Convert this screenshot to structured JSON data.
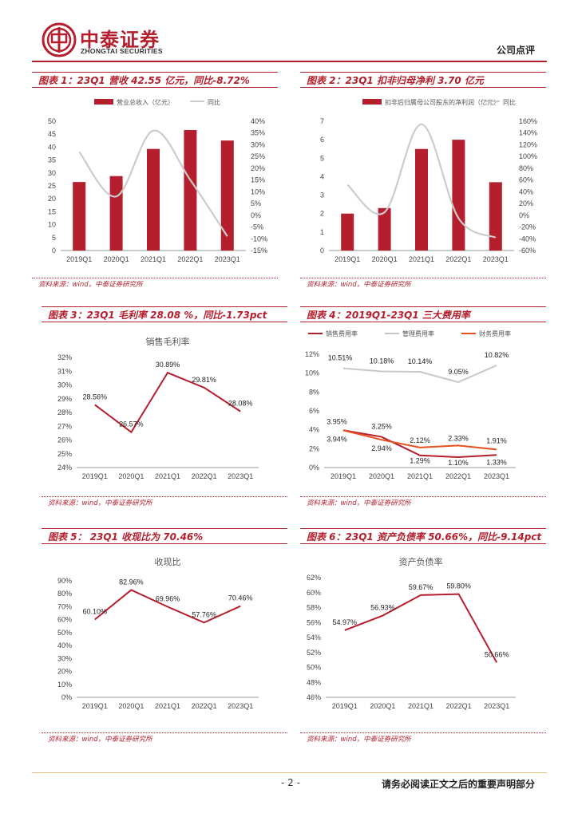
{
  "header": {
    "brand_cn": "中泰证券",
    "brand_en": "ZHONGTAI SECURITIES",
    "doc_type": "公司点评",
    "accent": "#b41e2d"
  },
  "panels": [
    {
      "title": "图表 1：23Q1 营收 42.55 亿元，同比-8.72%",
      "source": "资料来源：wind，中泰证券研究所",
      "chart_data": {
        "type": "bar+line",
        "categories": [
          "2019Q1",
          "2020Q1",
          "2021Q1",
          "2022Q1",
          "2023Q1"
        ],
        "series": [
          {
            "name": "营业总收入（亿元）",
            "kind": "bar",
            "axis": "left",
            "values": [
              26.5,
              28.8,
              39.3,
              46.6,
              42.55
            ]
          },
          {
            "name": "同比",
            "kind": "line",
            "axis": "right",
            "values": [
              27,
              8,
              36,
              15,
              -9
            ]
          }
        ],
        "left_axis": {
          "min": 0,
          "max": 50,
          "ticks": [
            "0",
            "5",
            "10",
            "15",
            "20",
            "25",
            "30",
            "35",
            "40",
            "45",
            "50"
          ]
        },
        "right_axis": {
          "min": -15,
          "max": 40,
          "ticks": [
            "-15%",
            "-10%",
            "-5%",
            "0%",
            "5%",
            "10%",
            "15%",
            "20%",
            "25%",
            "30%",
            "35%",
            "40%"
          ]
        },
        "legend": [
          "营业总收入（亿元）",
          "同比"
        ]
      }
    },
    {
      "title": "图表 2：23Q1 扣非归母净利 3.70 亿元",
      "source": "资料来源：wind，中泰证券研究所",
      "chart_data": {
        "type": "bar+line",
        "categories": [
          "2019Q1",
          "2020Q1",
          "2021Q1",
          "2022Q1",
          "2023Q1"
        ],
        "series": [
          {
            "name": "扣非后归属母公司股东的净利润（亿元）",
            "kind": "bar",
            "axis": "left",
            "values": [
              2.0,
              2.3,
              5.5,
              6.0,
              3.7
            ]
          },
          {
            "name": "同比",
            "kind": "line",
            "axis": "right",
            "values": [
              52,
              5,
              155,
              -5,
              -38
            ]
          }
        ],
        "left_axis": {
          "min": 0,
          "max": 7,
          "ticks": [
            "0",
            "1",
            "2",
            "3",
            "4",
            "5",
            "6",
            "7"
          ]
        },
        "right_axis": {
          "min": -60,
          "max": 160,
          "ticks": [
            "-60%",
            "-40%",
            "-20%",
            "0%",
            "20%",
            "40%",
            "60%",
            "80%",
            "100%",
            "120%",
            "140%",
            "160%"
          ]
        },
        "legend": [
          "扣非后归属母公司股东的净利润（亿元）",
          "同比"
        ]
      }
    },
    {
      "title": "图表 3：23Q1 毛利率 28.08 %，同比-1.73pct",
      "source": "资料来源：wind，中泰证券研究所",
      "chart_data": {
        "type": "line",
        "title": "销售毛利率",
        "categories": [
          "2019Q1",
          "2020Q1",
          "2021Q1",
          "2022Q1",
          "2023Q1"
        ],
        "series": [
          {
            "name": "销售毛利率",
            "values": [
              28.56,
              26.57,
              30.89,
              29.81,
              28.08
            ],
            "labels": [
              "28.56%",
              "26.57%",
              "30.89%",
              "29.81%",
              "28.08%"
            ]
          }
        ],
        "y_axis": {
          "min": 24,
          "max": 32,
          "ticks": [
            "24%",
            "25%",
            "26%",
            "27%",
            "28%",
            "29%",
            "30%",
            "31%",
            "32%"
          ]
        }
      }
    },
    {
      "title": "图表 4：2019Q1-23Q1 三大费用率",
      "source": "资料来源：wind，中泰证券研究所",
      "chart_data": {
        "type": "line",
        "categories": [
          "2019Q1",
          "2020Q1",
          "2021Q1",
          "2022Q1",
          "2023Q1"
        ],
        "series": [
          {
            "name": "销售费用率",
            "color": "#b41e2d",
            "values": [
              3.95,
              3.25,
              1.29,
              1.1,
              1.33
            ],
            "labels": [
              "3.95%",
              "3.25%",
              "1.29%",
              "1.10%",
              "1.33%"
            ]
          },
          {
            "name": "管理费用率",
            "color": "#c8c8c8",
            "values": [
              10.51,
              10.18,
              10.14,
              9.05,
              10.82
            ],
            "labels": [
              "10.51%",
              "10.18%",
              "10.14%",
              "9.05%",
              "10.82%"
            ]
          },
          {
            "name": "财务费用率",
            "color": "#e8501e",
            "values": [
              3.94,
              2.94,
              2.12,
              2.33,
              1.91
            ],
            "labels": [
              "3.94%",
              "2.94%",
              "2.12%",
              "2.33%",
              "1.91%"
            ]
          }
        ],
        "y_axis": {
          "min": 0,
          "max": 12,
          "ticks": [
            "0%",
            "2%",
            "4%",
            "6%",
            "8%",
            "10%",
            "12%"
          ]
        },
        "legend": [
          "销售费用率",
          "管理费用率",
          "财务费用率"
        ]
      }
    },
    {
      "title": "图表 5： 23Q1 收现比为 70.46%",
      "source": "资料来源：wind，中泰证券研究所",
      "chart_data": {
        "type": "line",
        "title": "收现比",
        "categories": [
          "2019Q1",
          "2020Q1",
          "2021Q1",
          "2022Q1",
          "2023Q1"
        ],
        "series": [
          {
            "name": "收现比",
            "values": [
              60.1,
              82.96,
              69.96,
              57.76,
              70.46
            ],
            "labels": [
              "60.10%",
              "82.96%",
              "69.96%",
              "57.76%",
              "70.46%"
            ]
          }
        ],
        "y_axis": {
          "min": 0,
          "max": 90,
          "ticks": [
            "0%",
            "10%",
            "20%",
            "30%",
            "40%",
            "50%",
            "60%",
            "70%",
            "80%",
            "90%"
          ]
        }
      }
    },
    {
      "title": "图表 6：23Q1 资产负债率 50.66%，同比-9.14pct",
      "source": "资料来源：wind，中泰证券研究所",
      "chart_data": {
        "type": "line",
        "title": "资产负债率",
        "categories": [
          "2019Q1",
          "2020Q1",
          "2021Q1",
          "2022Q1",
          "2023Q1"
        ],
        "series": [
          {
            "name": "资产负债率",
            "values": [
              54.97,
              56.93,
              59.67,
              59.8,
              50.66
            ],
            "labels": [
              "54.97%",
              "56.93%",
              "59.67%",
              "59.80%",
              "50.66%"
            ]
          }
        ],
        "y_axis": {
          "min": 46,
          "max": 62,
          "ticks": [
            "46%",
            "48%",
            "50%",
            "52%",
            "54%",
            "56%",
            "58%",
            "60%",
            "62%"
          ]
        }
      }
    }
  ],
  "footer": {
    "page": "- 2 -",
    "note": "请务必阅读正文之后的重要声明部分"
  }
}
